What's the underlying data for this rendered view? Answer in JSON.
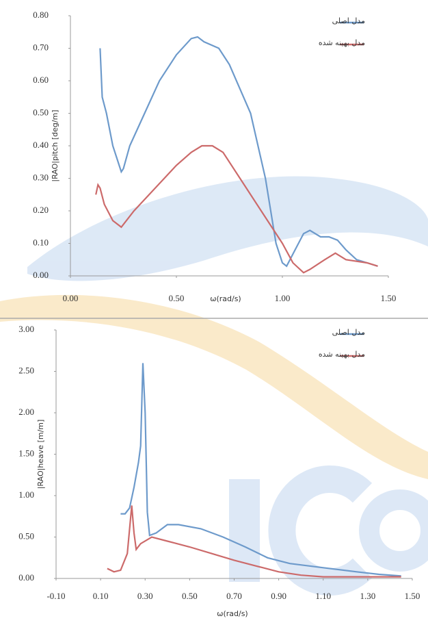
{
  "chart_data": [
    {
      "type": "line",
      "x_label": "ω(rad/s)",
      "y_label": "|RAO|pitch [deg/m]",
      "legend": "upper right",
      "xlim": [
        0,
        1.5
      ],
      "xticks": [
        {
          "value": 0,
          "label": "0.00"
        },
        {
          "value": 0.5,
          "label": "0.50"
        },
        {
          "value": 1,
          "label": "1.00"
        },
        {
          "value": 1.5,
          "label": "1.50"
        }
      ],
      "ylim": [
        0,
        0.8
      ],
      "yticks": [
        {
          "value": 0,
          "label": "0.00"
        },
        {
          "value": 0.1,
          "label": "0.10"
        },
        {
          "value": 0.2,
          "label": "0.20"
        },
        {
          "value": 0.3,
          "label": "0.30"
        },
        {
          "value": 0.4,
          "label": "0.40"
        },
        {
          "value": 0.5,
          "label": "0.50"
        },
        {
          "value": 0.6,
          "label": "0.60"
        },
        {
          "value": 0.7,
          "label": "0.70"
        },
        {
          "value": 0.8,
          "label": "0.80"
        }
      ],
      "series": [
        {
          "name": "مدل اصلی",
          "color": "#6d9acb",
          "x": [
            0.14,
            0.15,
            0.17,
            0.2,
            0.24,
            0.25,
            0.28,
            0.35,
            0.42,
            0.5,
            0.57,
            0.6,
            0.63,
            0.7,
            0.75,
            0.85,
            0.92,
            0.97,
            1.0,
            1.02,
            1.06,
            1.1,
            1.13,
            1.18,
            1.22,
            1.26,
            1.3,
            1.35,
            1.4,
            1.45
          ],
          "values": [
            0.7,
            0.55,
            0.5,
            0.4,
            0.32,
            0.33,
            0.4,
            0.5,
            0.6,
            0.68,
            0.73,
            0.735,
            0.72,
            0.7,
            0.65,
            0.5,
            0.3,
            0.1,
            0.04,
            0.03,
            0.08,
            0.13,
            0.14,
            0.12,
            0.12,
            0.11,
            0.08,
            0.05,
            0.04,
            0.03
          ]
        },
        {
          "name": "مدل بهینه شده",
          "color": "#cc6a6a",
          "x": [
            0.12,
            0.13,
            0.14,
            0.16,
            0.2,
            0.24,
            0.3,
            0.4,
            0.5,
            0.57,
            0.62,
            0.67,
            0.72,
            0.8,
            0.9,
            1.0,
            1.05,
            1.1,
            1.13,
            1.2,
            1.25,
            1.3,
            1.4,
            1.45
          ],
          "values": [
            0.25,
            0.28,
            0.27,
            0.22,
            0.17,
            0.15,
            0.2,
            0.27,
            0.34,
            0.38,
            0.4,
            0.4,
            0.38,
            0.3,
            0.2,
            0.1,
            0.04,
            0.01,
            0.02,
            0.05,
            0.07,
            0.05,
            0.04,
            0.03
          ]
        }
      ]
    },
    {
      "type": "line",
      "x_label": "ω(rad/s)",
      "y_label": "|RAO|heave [m/m]",
      "legend": "upper right",
      "xlim": [
        -0.1,
        1.5
      ],
      "xticks": [
        {
          "value": -0.1,
          "label": "-0.10"
        },
        {
          "value": 0.1,
          "label": "0.10"
        },
        {
          "value": 0.3,
          "label": "0.30"
        },
        {
          "value": 0.5,
          "label": "0.50"
        },
        {
          "value": 0.7,
          "label": "0.70"
        },
        {
          "value": 0.9,
          "label": "0.90"
        },
        {
          "value": 1.1,
          "label": "1.10"
        },
        {
          "value": 1.3,
          "label": "1.30"
        },
        {
          "value": 1.5,
          "label": "1.50"
        }
      ],
      "ylim": [
        0,
        3
      ],
      "yticks": [
        {
          "value": 0,
          "label": "0.00"
        },
        {
          "value": 0.5,
          "label": "0.50"
        },
        {
          "value": 1,
          "label": "1.00"
        },
        {
          "value": 1.5,
          "label": "1.50"
        },
        {
          "value": 2,
          "label": "2.00"
        },
        {
          "value": 2.5,
          "label": "2.50"
        },
        {
          "value": 3,
          "label": "3.00"
        }
      ],
      "series": [
        {
          "name": "مدل اصلی",
          "color": "#6d9acb",
          "x": [
            0.19,
            0.21,
            0.23,
            0.25,
            0.27,
            0.28,
            0.29,
            0.3,
            0.31,
            0.32,
            0.35,
            0.4,
            0.45,
            0.55,
            0.65,
            0.75,
            0.85,
            0.95,
            1.1,
            1.25,
            1.35,
            1.45
          ],
          "values": [
            0.78,
            0.78,
            0.85,
            1.1,
            1.4,
            1.6,
            2.6,
            2.0,
            0.8,
            0.52,
            0.55,
            0.65,
            0.65,
            0.6,
            0.5,
            0.38,
            0.25,
            0.18,
            0.13,
            0.08,
            0.05,
            0.03
          ]
        },
        {
          "name": "مدل بهینه شده",
          "color": "#cc6a6a",
          "x": [
            0.13,
            0.16,
            0.19,
            0.22,
            0.24,
            0.25,
            0.26,
            0.28,
            0.33,
            0.4,
            0.5,
            0.6,
            0.7,
            0.8,
            0.9,
            1.0,
            1.1,
            1.2,
            1.3,
            1.45
          ],
          "values": [
            0.12,
            0.08,
            0.1,
            0.3,
            0.88,
            0.55,
            0.35,
            0.42,
            0.5,
            0.45,
            0.38,
            0.3,
            0.22,
            0.15,
            0.08,
            0.04,
            0.02,
            0.02,
            0.02,
            0.02
          ]
        }
      ]
    }
  ]
}
